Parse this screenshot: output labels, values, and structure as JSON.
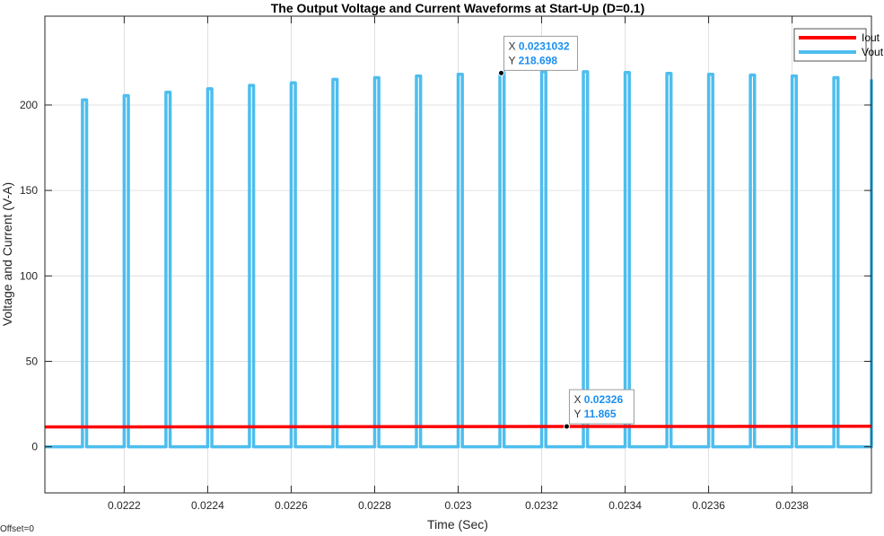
{
  "chart_data": {
    "type": "line",
    "title": "The Output Voltage and Current Waveforms at Start-Up (D=0.1)",
    "xlabel": "Time (Sec)",
    "ylabel": "Voltage and Current (V-A)",
    "xlim": [
      0.02201,
      0.02399
    ],
    "ylim": [
      -27,
      252
    ],
    "x_ticks": [
      0.0222,
      0.0224,
      0.0226,
      0.0228,
      0.023,
      0.0232,
      0.0234,
      0.0236,
      0.0238
    ],
    "x_tick_labels": [
      "0.0222",
      "0.0224",
      "0.0226",
      "0.0228",
      "0.023",
      "0.0232",
      "0.0234",
      "0.0236",
      "0.0238"
    ],
    "y_ticks": [
      0,
      50,
      100,
      150,
      200
    ],
    "y_tick_labels": [
      "0",
      "50",
      "100",
      "150",
      "200"
    ],
    "grid": true,
    "legend_position": "top-right",
    "offset_label": "Offset=0",
    "series": [
      {
        "name": "Iout",
        "color": "#ff0000",
        "x": [
          0.02201,
          0.0225,
          0.023,
          0.0235,
          0.02399
        ],
        "y": [
          11.6,
          11.7,
          11.8,
          11.9,
          12.0
        ]
      },
      {
        "name": "Vout",
        "color": "#4dbeee",
        "pulse_period": 0.0001,
        "pulse_width": 1e-05,
        "pulse_starts": [
          0.0221,
          0.0222,
          0.0223,
          0.0224,
          0.0225,
          0.0226,
          0.0227,
          0.0228,
          0.0229,
          0.023,
          0.0231,
          0.0232,
          0.0233,
          0.0234,
          0.0235,
          0.0236,
          0.0237,
          0.0238,
          0.0239
        ],
        "pulse_peaks": [
          203,
          205.5,
          207.5,
          209.5,
          211.5,
          213,
          215,
          216,
          217,
          218,
          219,
          219.5,
          219.5,
          219,
          218.5,
          218,
          217.5,
          217,
          216
        ],
        "final_rise_x": 0.02399,
        "final_rise_y": 215,
        "base_value": 0
      }
    ],
    "datatips": [
      {
        "x_label": "X",
        "x_value": "0.0231032",
        "y_label": "Y",
        "y_value": "218.698",
        "x": 0.0231032,
        "y": 218.698
      },
      {
        "x_label": "X",
        "x_value": "0.02326",
        "y_label": "Y",
        "y_value": "11.865",
        "x": 0.02326,
        "y": 11.865
      }
    ]
  }
}
